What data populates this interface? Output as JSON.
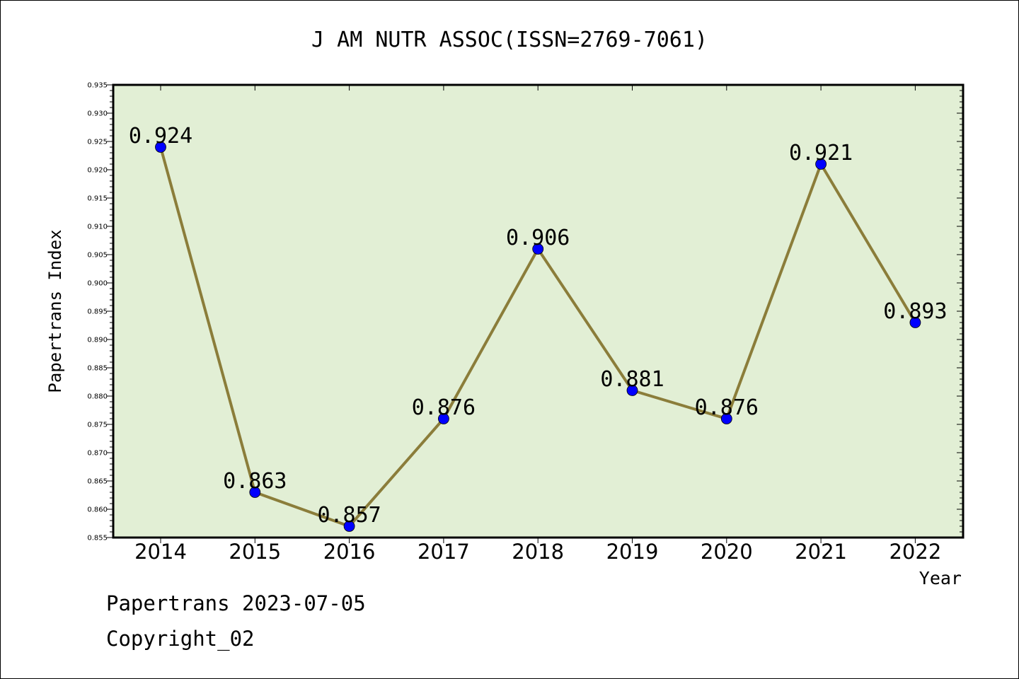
{
  "chart_data": {
    "type": "line",
    "title": "J AM NUTR ASSOC(ISSN=2769-7061)",
    "xlabel": "Year",
    "ylabel": "Papertrans Index",
    "categories": [
      "2014",
      "2015",
      "2016",
      "2017",
      "2018",
      "2019",
      "2020",
      "2021",
      "2022"
    ],
    "series": [
      {
        "values": [
          0.924,
          0.863,
          0.857,
          0.876,
          0.906,
          0.881,
          0.876,
          0.921,
          0.893
        ],
        "labels": [
          "0.924",
          "0.863",
          "0.857",
          "0.876",
          "0.906",
          "0.881",
          "0.876",
          "0.921",
          "0.893"
        ]
      }
    ],
    "ylim": [
      0.855,
      0.935
    ],
    "yticks": [
      "0.855",
      "0.860",
      "0.865",
      "0.870",
      "0.875",
      "0.880",
      "0.885",
      "0.890",
      "0.895",
      "0.900",
      "0.905",
      "0.910",
      "0.915",
      "0.920",
      "0.925",
      "0.930",
      "0.935"
    ],
    "grid": false,
    "legend": "none",
    "colors": {
      "plot_background": "#e2efd5",
      "line": "#8b7d3a",
      "marker": "#0000ff",
      "axis": "#000000"
    }
  },
  "footer": {
    "date_text": "Papertrans 2023-07-05",
    "copyright_text": "Copyright_02"
  }
}
